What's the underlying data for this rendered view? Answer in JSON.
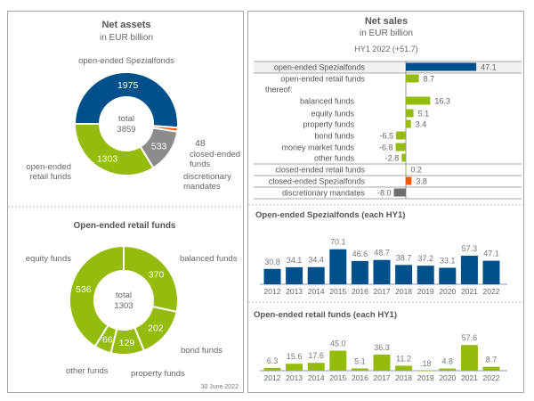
{
  "colors": {
    "blue": "#00508c",
    "green": "#95bb0f",
    "orange": "#f05a0f",
    "grey": "#8c8c8c",
    "dark_grey": "#6e6e6e",
    "text": "#595959"
  },
  "footnote": "30 June 2022",
  "chart_data": [
    {
      "type": "pie",
      "variant": "donut",
      "title": "Net assets",
      "subtitle": "in EUR billion",
      "center_label": "total",
      "center_value": "3859",
      "slices": [
        {
          "label": "open-ended  Spezialfonds",
          "value": 1975,
          "color": "#00508c"
        },
        {
          "label": "closed-ended funds",
          "value": 48,
          "color": "#f05a0f"
        },
        {
          "label": "discretionary mandates",
          "value": 533,
          "color": "#8c8c8c"
        },
        {
          "label": "open-ended retail funds",
          "value": 1303,
          "color": "#95bb0f"
        }
      ]
    },
    {
      "type": "pie",
      "variant": "donut",
      "title": "Open-ended retail funds",
      "center_label": "total",
      "center_value": "1303",
      "slices": [
        {
          "label": "balanced funds",
          "value": 370,
          "color": "#95bb0f"
        },
        {
          "label": "bond funds",
          "value": 202,
          "color": "#95bb0f"
        },
        {
          "label": "property funds",
          "value": 129,
          "color": "#95bb0f"
        },
        {
          "label": "other funds",
          "value": 66,
          "color": "#95bb0f"
        },
        {
          "label": "equity funds",
          "value": 536,
          "color": "#95bb0f"
        }
      ]
    },
    {
      "type": "bar",
      "orientation": "horizontal",
      "title": "Net sales",
      "subtitle": "in EUR billion",
      "period": "HY1 2022 (+51.7)",
      "rows": [
        {
          "label": "open-ended Spezialfonds",
          "value": 47.1,
          "display": "47.1",
          "color": "#00508c",
          "highlight": true
        },
        {
          "label": "open-ended retail funds",
          "value": 8.7,
          "display": "8.7",
          "color": "#95bb0f"
        },
        {
          "label": "thereof:",
          "value": null,
          "display": ""
        },
        {
          "label": "balanced funds",
          "value": 16.3,
          "display": "16.3",
          "color": "#95bb0f"
        },
        {
          "label": "equity funds",
          "value": 5.1,
          "display": "5.1",
          "color": "#95bb0f"
        },
        {
          "label": "property funds",
          "value": 3.4,
          "display": "3.4",
          "color": "#95bb0f"
        },
        {
          "label": "bond funds",
          "value": -6.5,
          "display": "-6.5",
          "color": "#95bb0f"
        },
        {
          "label": "money market funds",
          "value": -6.8,
          "display": "-6.8",
          "color": "#95bb0f"
        },
        {
          "label": "other funds",
          "value": -2.8,
          "display": "-2.8",
          "color": "#95bb0f"
        },
        {
          "label": "closed-ended retail funds",
          "value": 0.2,
          "display": "0.2",
          "color": "#95bb0f"
        },
        {
          "label": "closed-ended Spezialfonds",
          "value": 3.8,
          "display": "3.8",
          "color": "#f05a0f"
        },
        {
          "label": "discretionary mandates",
          "value": -8.0,
          "display": "-8.0",
          "color": "#6e6e6e"
        }
      ]
    },
    {
      "type": "bar",
      "title": "Open-ended Spezialfonds (each HY1)",
      "color": "#00508c",
      "categories": [
        "2012",
        "2013",
        "2014",
        "2015",
        "2016",
        "2017",
        "2018",
        "2019",
        "2020",
        "2021",
        "2022"
      ],
      "values": [
        30.8,
        34.1,
        34.4,
        70.1,
        46.6,
        48.7,
        38.7,
        37.2,
        33.1,
        57.3,
        47.1
      ],
      "labels": [
        "30.8",
        "34.1",
        "34.4",
        "70.1",
        "46.6",
        "48.7",
        "38.7",
        "37.2",
        "33.1",
        "57.3",
        "47.1"
      ]
    },
    {
      "type": "bar",
      "title": "Open-ended retail funds (each HY1)",
      "color": "#95bb0f",
      "categories": [
        "2012",
        "2013",
        "2014",
        "2015",
        "2016",
        "2017",
        "2018",
        "2019",
        "2020",
        "2021",
        "2022"
      ],
      "values": [
        6.3,
        15.6,
        17.6,
        45.0,
        5.1,
        36.3,
        11.2,
        0.18,
        4.8,
        57.6,
        8.7
      ],
      "labels": [
        "6.3",
        "15.6",
        "17.6",
        "45.0",
        "5.1",
        "36.3",
        "11.2",
        ".18",
        "4.8",
        "57.6",
        "8.7"
      ]
    }
  ]
}
